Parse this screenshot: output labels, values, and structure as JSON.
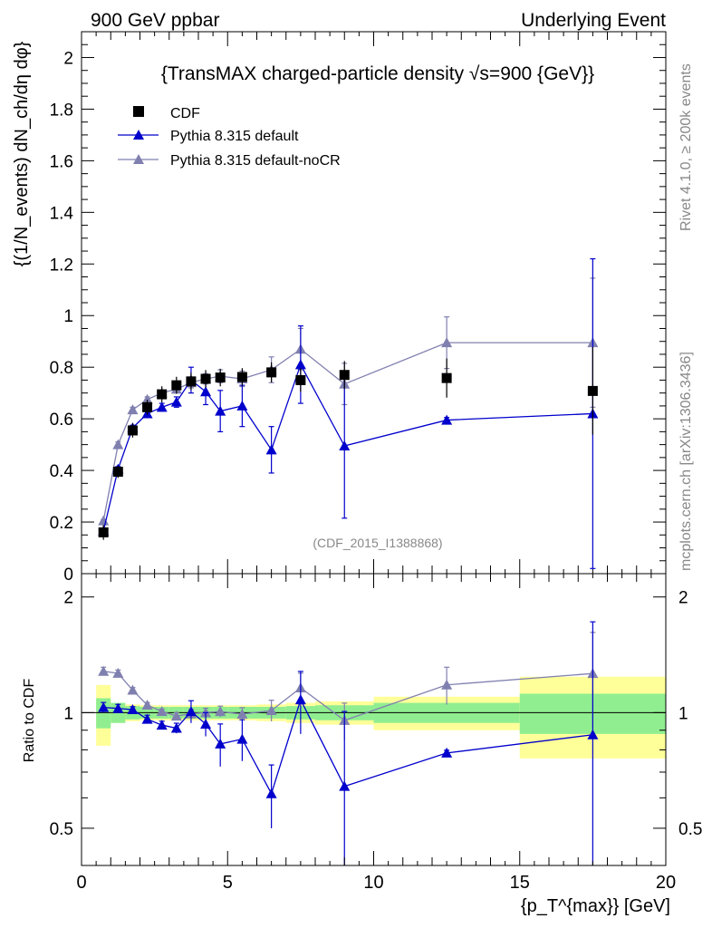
{
  "header": {
    "left": "900 GeV ppbar",
    "right": "Underlying Event"
  },
  "side_labels": {
    "rivet": "Rivet 4.1.0, ≥ 200k events",
    "mcplots": "mcplots.cern.ch [arXiv:1306.3436]"
  },
  "watermark": "(CDF_2015_I1388868)",
  "colors": {
    "data": "#000000",
    "default": "#0000cc",
    "noCR": "#8080b0",
    "band_green": "#90ee90",
    "band_yellow": "#ffff99"
  },
  "chart_data": {
    "type": "scatter",
    "title": "{TransMAX charged-particle density √s=900 {GeV}}",
    "xlabel": "{p_T^{max}} [GeV]",
    "ylabel": "{(1/N_events) dN_ch/dη dφ}",
    "ratio_ylabel": "Ratio to CDF",
    "xlim": [
      0,
      20
    ],
    "ylim": [
      0,
      2.1
    ],
    "ratio_ylim": [
      0.4,
      2.3
    ],
    "x_ticks": [
      "0",
      "5",
      "10",
      "15",
      "20"
    ],
    "y_ticks": [
      "0",
      "0.2",
      "0.4",
      "0.6",
      "0.8",
      "1",
      "1.2",
      "1.4",
      "1.6",
      "1.8",
      "2"
    ],
    "ratio_ticks": [
      "0.5",
      "1",
      "2"
    ],
    "legend": [
      "CDF",
      "Pythia 8.315 default",
      "Pythia 8.315 default-noCR"
    ],
    "series": [
      {
        "name": "CDF",
        "x": [
          0.75,
          1.25,
          1.75,
          2.25,
          2.75,
          3.25,
          3.75,
          4.25,
          4.75,
          5.5,
          6.5,
          7.5,
          9.0,
          12.5,
          17.5
        ],
        "y": [
          0.16,
          0.395,
          0.555,
          0.645,
          0.695,
          0.73,
          0.745,
          0.755,
          0.76,
          0.762,
          0.78,
          0.75,
          0.77,
          0.758,
          0.708
        ],
        "band_lo_edges": [
          0.5,
          1.0,
          1.5,
          2.0,
          2.5,
          3.0,
          3.5,
          4.0,
          4.5,
          5.0,
          6.0,
          7.0,
          8.0,
          10.0,
          15.0
        ],
        "band_hi_edges": [
          1.0,
          1.5,
          2.0,
          2.5,
          3.0,
          3.5,
          4.0,
          4.5,
          5.0,
          6.0,
          7.0,
          8.0,
          10.0,
          15.0,
          20.0
        ],
        "stat_rel": [
          0.09,
          0.06,
          0.04,
          0.035,
          0.035,
          0.035,
          0.035,
          0.035,
          0.035,
          0.035,
          0.035,
          0.04,
          0.045,
          0.06,
          0.12
        ],
        "tot_rel": [
          0.18,
          0.06,
          0.05,
          0.045,
          0.045,
          0.045,
          0.045,
          0.045,
          0.045,
          0.045,
          0.05,
          0.06,
          0.07,
          0.1,
          0.24
        ]
      },
      {
        "name": "Pythia 8.315 default",
        "x": [
          0.75,
          1.25,
          1.75,
          2.25,
          2.75,
          3.25,
          3.75,
          4.25,
          4.75,
          5.5,
          6.5,
          7.5,
          9.0,
          12.5,
          17.5
        ],
        "y": [
          0.165,
          0.405,
          0.565,
          0.62,
          0.645,
          0.665,
          0.75,
          0.705,
          0.63,
          0.65,
          0.48,
          0.81,
          0.495,
          0.595,
          0.62
        ],
        "err": [
          0.005,
          0.01,
          0.01,
          0.015,
          0.015,
          0.02,
          0.05,
          0.05,
          0.08,
          0.08,
          0.09,
          0.15,
          0.28,
          0.01,
          0.6
        ]
      },
      {
        "name": "Pythia 8.315 default-noCR",
        "x": [
          0.75,
          1.25,
          1.75,
          2.25,
          2.75,
          3.25,
          3.75,
          4.25,
          4.75,
          5.5,
          6.5,
          7.5,
          9.0,
          12.5,
          17.5
        ],
        "y": [
          0.205,
          0.5,
          0.635,
          0.675,
          0.7,
          0.715,
          0.74,
          0.755,
          0.765,
          0.755,
          0.79,
          0.87,
          0.735,
          0.895,
          0.895
        ],
        "err": [
          0.005,
          0.01,
          0.01,
          0.01,
          0.01,
          0.015,
          0.02,
          0.02,
          0.025,
          0.03,
          0.05,
          0.08,
          0.08,
          0.1,
          0.25
        ]
      }
    ]
  }
}
